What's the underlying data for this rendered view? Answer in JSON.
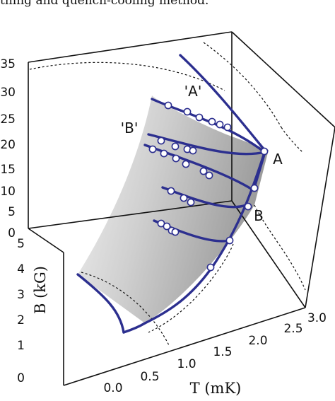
{
  "caption_fragment": "thing and quench-cooling method.",
  "chart_data": {
    "type": "3d-surface",
    "x_axis": {
      "label": "T (mK)",
      "ticks": [
        "0.0",
        "0.5",
        "1.0",
        "1.5",
        "2.0",
        "2.5",
        "3.0"
      ],
      "range": [
        0.0,
        3.0
      ]
    },
    "y_axis": {
      "label": "B (kG)",
      "ticks": [
        "0",
        "1",
        "2",
        "3",
        "4",
        "5"
      ],
      "range": [
        0,
        5
      ]
    },
    "z_axis": {
      "label": "",
      "ticks": [
        "0",
        "5",
        "10",
        "15",
        "20",
        "25",
        "30",
        "35"
      ],
      "range": [
        0,
        35
      ]
    },
    "annotations": [
      "'A'",
      "'B'",
      "A",
      "B"
    ],
    "surface_color": "#c8c8c8",
    "curve_color": "#2c2f8f",
    "series_count": 7
  }
}
